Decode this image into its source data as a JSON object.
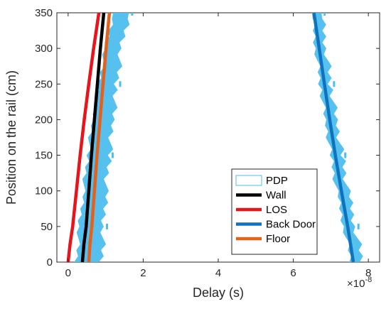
{
  "chart_data": {
    "type": "line",
    "xlabel": "Delay (s)",
    "ylabel": "Position on the rail (cm)",
    "x_exponent_label": "×10",
    "x_exponent_power": "-8",
    "xlim": [
      -0.3,
      8.3
    ],
    "ylim": [
      0,
      350
    ],
    "x_ticks": [
      0,
      2,
      4,
      6,
      8
    ],
    "y_ticks": [
      0,
      50,
      100,
      150,
      200,
      250,
      300,
      350
    ],
    "x_tick_labels": [
      "0",
      "2",
      "4",
      "6",
      "8"
    ],
    "y_tick_labels": [
      "0",
      "50",
      "100",
      "150",
      "200",
      "250",
      "300",
      "350"
    ],
    "grid": false,
    "legend_position": "bottom-right",
    "series": [
      {
        "name": "PDP",
        "color": "#4dbeee",
        "style": "scatter-area",
        "bands": [
          {
            "left": [
              [
                0.22,
                0
              ],
              [
                0.3,
                50
              ],
              [
                0.4,
                100
              ],
              [
                0.52,
                150
              ],
              [
                0.66,
                200
              ],
              [
                0.82,
                250
              ],
              [
                1.0,
                300
              ],
              [
                1.2,
                350
              ]
            ],
            "right": [
              [
                0.9,
                0
              ],
              [
                0.95,
                50
              ],
              [
                1.0,
                100
              ],
              [
                1.1,
                150
              ],
              [
                1.2,
                200
              ],
              [
                1.3,
                250
              ],
              [
                1.42,
                300
              ],
              [
                1.62,
                350
              ]
            ]
          },
          {
            "left": [
              [
                7.55,
                0
              ],
              [
                7.35,
                50
              ],
              [
                7.15,
                100
              ],
              [
                7.0,
                150
              ],
              [
                6.85,
                200
              ],
              [
                6.72,
                250
              ],
              [
                6.6,
                300
              ],
              [
                6.5,
                350
              ]
            ],
            "right": [
              [
                7.85,
                0
              ],
              [
                7.65,
                50
              ],
              [
                7.45,
                100
              ],
              [
                7.3,
                150
              ],
              [
                7.15,
                200
              ],
              [
                7.0,
                250
              ],
              [
                6.88,
                300
              ],
              [
                6.75,
                350
              ]
            ]
          }
        ]
      },
      {
        "name": "Wall",
        "color": "#000000",
        "points": [
          [
            0.38,
            0
          ],
          [
            0.42,
            25
          ],
          [
            0.48,
            50
          ],
          [
            0.55,
            100
          ],
          [
            0.62,
            150
          ],
          [
            0.7,
            200
          ],
          [
            0.78,
            250
          ],
          [
            0.86,
            300
          ],
          [
            0.95,
            350
          ]
        ]
      },
      {
        "name": "LOS",
        "color": "#e8141b",
        "points": [
          [
            0.0,
            0
          ],
          [
            0.05,
            25
          ],
          [
            0.12,
            50
          ],
          [
            0.22,
            100
          ],
          [
            0.32,
            150
          ],
          [
            0.43,
            200
          ],
          [
            0.55,
            250
          ],
          [
            0.68,
            300
          ],
          [
            0.82,
            350
          ]
        ]
      },
      {
        "name": "Back Door",
        "color": "#0f72bd",
        "points": [
          [
            7.6,
            0
          ],
          [
            7.45,
            50
          ],
          [
            7.28,
            100
          ],
          [
            7.12,
            150
          ],
          [
            6.97,
            200
          ],
          [
            6.83,
            250
          ],
          [
            6.69,
            300
          ],
          [
            6.55,
            350
          ]
        ]
      },
      {
        "name": "Floor",
        "color": "#e6601a",
        "points": [
          [
            0.55,
            0
          ],
          [
            0.58,
            25
          ],
          [
            0.63,
            50
          ],
          [
            0.7,
            100
          ],
          [
            0.77,
            150
          ],
          [
            0.85,
            200
          ],
          [
            0.93,
            250
          ],
          [
            1.01,
            300
          ],
          [
            1.1,
            350
          ]
        ]
      }
    ]
  }
}
